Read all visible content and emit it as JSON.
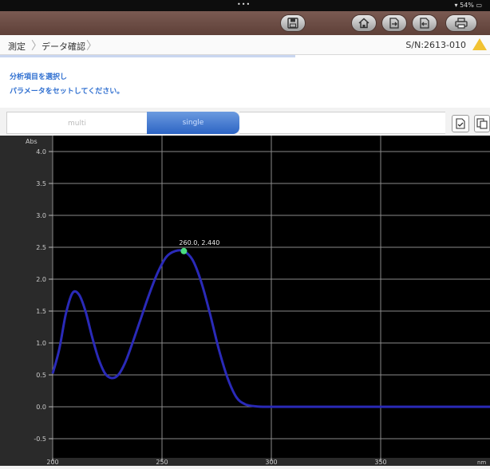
{
  "status": {
    "dots": "•••",
    "battery": "54%"
  },
  "toolbar": {
    "buttons": [
      {
        "name": "save-button",
        "icon": "floppy-disk-icon"
      },
      {
        "name": "home-button",
        "icon": "home-icon"
      },
      {
        "name": "export-button",
        "icon": "export-icon"
      },
      {
        "name": "import-button",
        "icon": "import-icon"
      },
      {
        "name": "print-button",
        "icon": "printer-icon"
      }
    ]
  },
  "breadcrumb": {
    "items": [
      "測定",
      "データ確認"
    ],
    "serial": "S/N:2613-010"
  },
  "message": {
    "line1": "分析項目を選択し",
    "line2": "パラメータをセットしてください。"
  },
  "tabs": {
    "multi": "multi",
    "single": "single",
    "active": "single"
  },
  "chart_data": {
    "type": "line",
    "ylabel": "Abs",
    "xlabel": "nm",
    "xlim": [
      200,
      400
    ],
    "ylim": [
      -0.8,
      4.25
    ],
    "x_ticks": [
      200,
      250,
      300,
      350
    ],
    "y_ticks": [
      -0.5,
      0.0,
      0.5,
      1.0,
      1.5,
      2.0,
      2.5,
      3.0,
      3.5,
      4.0
    ],
    "y_tick_labels": [
      "-0.5",
      "0.0",
      "0.5",
      "1.0",
      "1.5",
      "2.0",
      "2.5",
      "3.0",
      "3.5",
      "4.0"
    ],
    "grid": true,
    "line_color": "#2a2ab8",
    "series": [
      {
        "x": [
          200,
          203,
          206,
          209,
          212,
          215,
          218,
          221,
          224,
          227,
          230,
          233,
          236,
          240,
          244,
          248,
          252,
          256,
          260,
          264,
          268,
          272,
          276,
          280,
          284,
          288,
          292,
          296,
          300,
          320,
          340,
          360,
          380,
          400
        ],
        "y": [
          0.52,
          0.9,
          1.45,
          1.78,
          1.76,
          1.5,
          1.1,
          0.75,
          0.52,
          0.45,
          0.5,
          0.68,
          0.95,
          1.35,
          1.75,
          2.1,
          2.35,
          2.44,
          2.44,
          2.3,
          1.95,
          1.45,
          0.9,
          0.45,
          0.15,
          0.04,
          0.01,
          0.0,
          0.0,
          0.0,
          0.0,
          0.0,
          0.0,
          0.0
        ]
      }
    ],
    "marker": {
      "x": 260.0,
      "y": 2.44,
      "label": "260.0, 2.440",
      "color": "#4ade80"
    }
  }
}
